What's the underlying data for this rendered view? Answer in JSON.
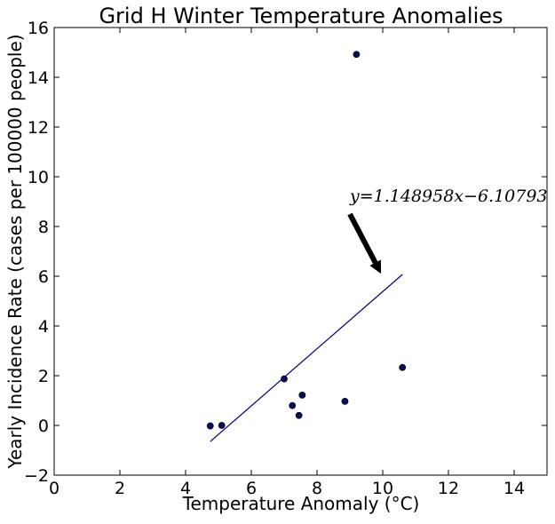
{
  "chart_data": {
    "type": "scatter",
    "title": "Grid H Winter Temperature Anomalies",
    "xlabel": "Temperature Anomaly (°C)",
    "ylabel": "Yearly Incidence Rate (cases per 100000 people)",
    "xlim": [
      0,
      15
    ],
    "ylim": [
      -2,
      16
    ],
    "xticks": [
      0,
      2,
      4,
      6,
      8,
      10,
      12,
      14
    ],
    "yticks": [
      -2,
      0,
      2,
      4,
      6,
      8,
      10,
      12,
      14,
      16
    ],
    "grid": false,
    "points": [
      {
        "x": 4.75,
        "y": -0.02
      },
      {
        "x": 5.1,
        "y": 0.0
      },
      {
        "x": 7.0,
        "y": 1.87
      },
      {
        "x": 7.25,
        "y": 0.8
      },
      {
        "x": 7.45,
        "y": 0.4
      },
      {
        "x": 7.55,
        "y": 1.22
      },
      {
        "x": 8.85,
        "y": 0.97
      },
      {
        "x": 9.2,
        "y": 14.92
      },
      {
        "x": 10.6,
        "y": 2.33
      }
    ],
    "fit_line": {
      "x_start": 4.75,
      "x_end": 10.6,
      "slope": 1.148958,
      "intercept": -6.10793
    },
    "annotation": {
      "text": "y=1.148958x−6.10793",
      "text_x": 9.0,
      "text_y": 9.0,
      "arrow_from": {
        "x": 9.0,
        "y": 8.5
      },
      "arrow_to": {
        "x": 9.95,
        "y": 6.1
      }
    },
    "colors": {
      "points": "#0b0b5e",
      "line": "#000080",
      "arrow": "#000000"
    }
  }
}
